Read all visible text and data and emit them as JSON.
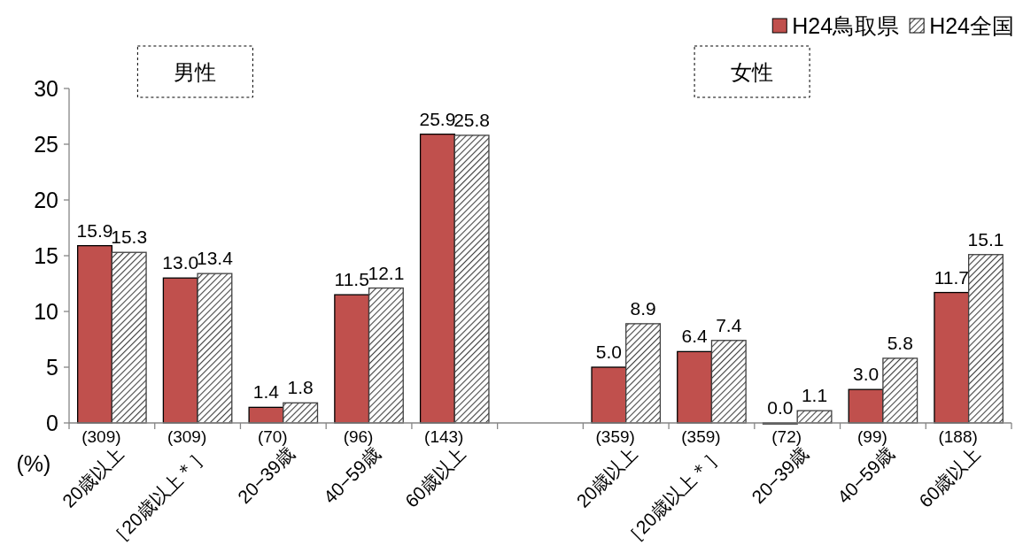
{
  "chart_data": {
    "type": "bar",
    "ylabel": "(%)",
    "categories": [
      "20歳以上",
      "［20歳以上＊］",
      "20−39歳",
      "40−59歳",
      "60歳以上",
      null,
      "20歳以上",
      "［20歳以上＊］",
      "20−39歳",
      "40−59歳",
      "60歳以上"
    ],
    "series": [
      {
        "name": "H24鳥取県",
        "color": "#c0504d",
        "values": [
          15.9,
          13.0,
          1.4,
          11.5,
          25.9,
          null,
          5.0,
          6.4,
          0.0,
          3.0,
          11.7
        ],
        "value_labels": [
          "15.9",
          "13.0",
          "1.4",
          "11.5",
          "25.9",
          null,
          "5.0",
          "6.4",
          "0.0",
          "3.0",
          "11.7"
        ]
      },
      {
        "name": "H24全国",
        "color": "#404040",
        "values": [
          15.3,
          13.4,
          1.8,
          12.1,
          25.8,
          null,
          8.9,
          7.4,
          1.1,
          5.8,
          15.1
        ],
        "value_labels": [
          "15.3",
          "13.4",
          "1.8",
          "12.1",
          "25.8",
          null,
          "8.9",
          "7.4",
          "1.1",
          "5.8",
          "15.1"
        ]
      }
    ],
    "annotations": [
      "(309)",
      "(309)",
      "(70)",
      "(96)",
      "(143)",
      "(359)",
      "(359)",
      "(72)",
      "(99)",
      "(188)",
      "男性",
      "女性"
    ],
    "ylim": [
      0,
      30
    ],
    "yticks": [
      0,
      5,
      10,
      15,
      20,
      25,
      30
    ],
    "grid": false,
    "legend": "top right"
  }
}
